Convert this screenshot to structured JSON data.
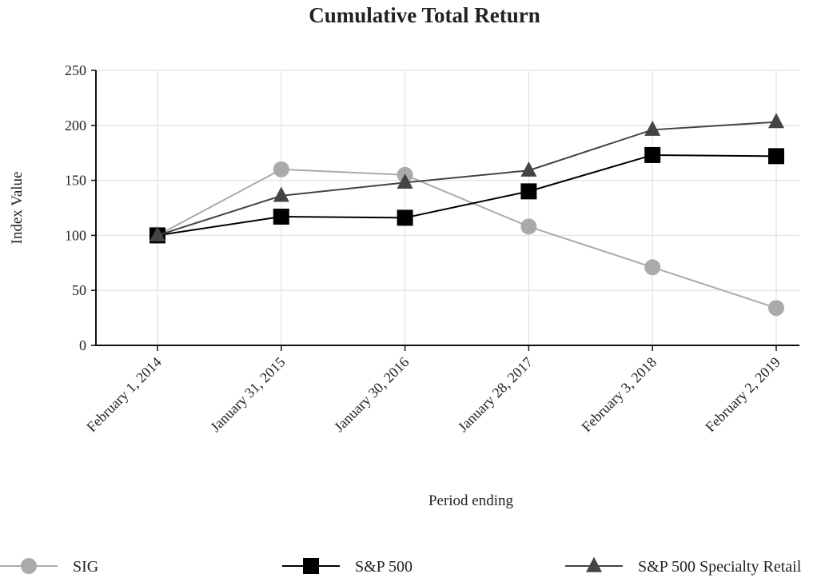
{
  "chart_data": {
    "type": "line",
    "title": "Cumulative Total Return",
    "xlabel": "Period ending",
    "ylabel": "Index Value",
    "categories": [
      "February 1, 2014",
      "January 31, 2015",
      "January 30, 2016",
      "January 28, 2017",
      "February 3, 2018",
      "February 2, 2019"
    ],
    "ylim": [
      0,
      250
    ],
    "yticks": [
      0,
      50,
      100,
      150,
      200,
      250
    ],
    "grid": true,
    "legend_position": "bottom",
    "series": [
      {
        "name": "SIG",
        "marker": "circle",
        "color": "#aaaaaa",
        "values": [
          100,
          160,
          155,
          108,
          71,
          34
        ]
      },
      {
        "name": "S&P 500",
        "marker": "square",
        "color": "#000000",
        "values": [
          100,
          117,
          116,
          140,
          173,
          172
        ]
      },
      {
        "name": "S&P 500 Specialty Retail",
        "marker": "triangle",
        "color": "#444444",
        "values": [
          100,
          136,
          148,
          159,
          196,
          203
        ]
      }
    ]
  }
}
